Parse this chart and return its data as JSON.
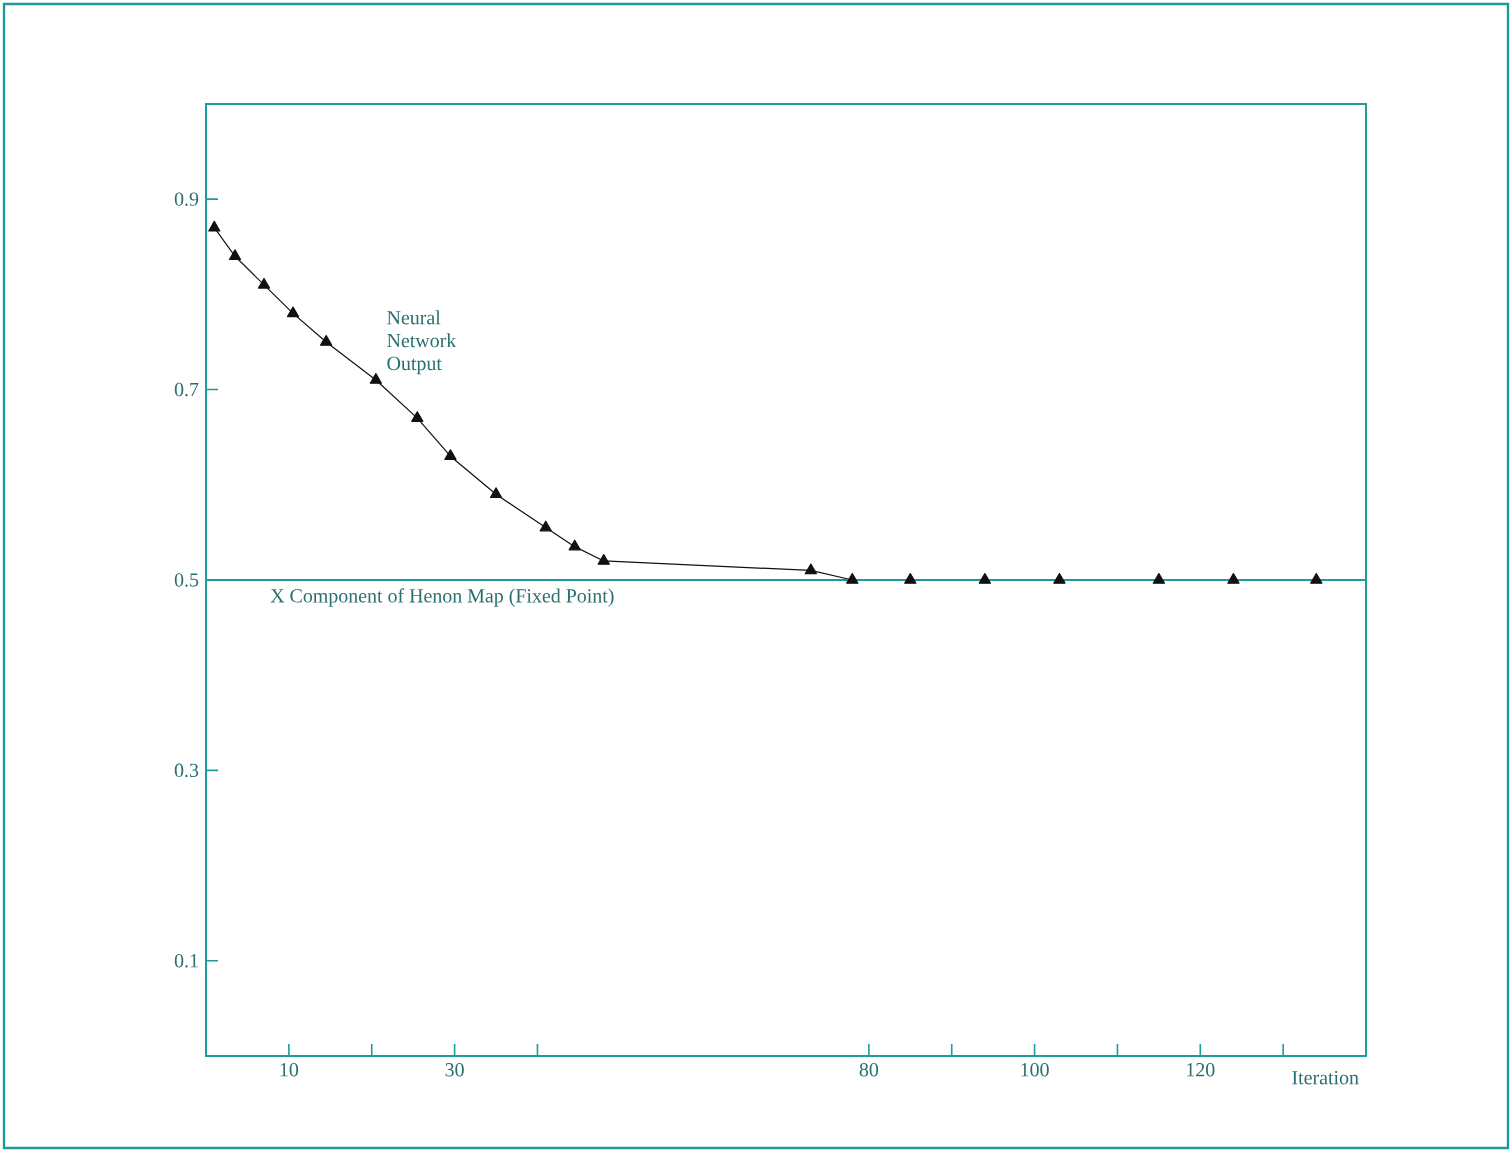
{
  "chart_data": {
    "type": "line",
    "xlabel": "Iteration",
    "x": [
      1,
      3.5,
      7,
      10.5,
      14.5,
      20.5,
      25.5,
      29.5,
      35,
      41,
      44.5,
      48,
      73,
      78,
      85,
      94,
      103,
      115,
      124,
      134
    ],
    "series": [
      {
        "name": "Neural Network Output",
        "color": "#111111",
        "values": [
          0.87,
          0.84,
          0.81,
          0.78,
          0.75,
          0.71,
          0.67,
          0.63,
          0.59,
          0.555,
          0.535,
          0.52,
          0.51,
          0.5,
          0.5,
          0.5,
          0.5,
          0.5,
          0.5,
          0.5
        ]
      }
    ],
    "xlim": [
      0,
      140
    ],
    "xticks": [
      10,
      {
        "value": 20,
        "label": null
      },
      30,
      {
        "value": 40,
        "label": null
      },
      80,
      {
        "value": 90,
        "label": null
      },
      100,
      {
        "value": 110,
        "label": null
      },
      120,
      {
        "value": 130,
        "label": null
      }
    ],
    "ylim": [
      0,
      1
    ],
    "yticks": [
      0.1,
      0.3,
      0.5,
      0.7,
      0.9
    ],
    "ref_lines": [
      {
        "axis": "y",
        "value": 0.5,
        "label": "X Component of Henon Map (Fixed Point)",
        "color": "#1f9a9a"
      }
    ],
    "marker": "triangle",
    "line_style": "solid"
  }
}
